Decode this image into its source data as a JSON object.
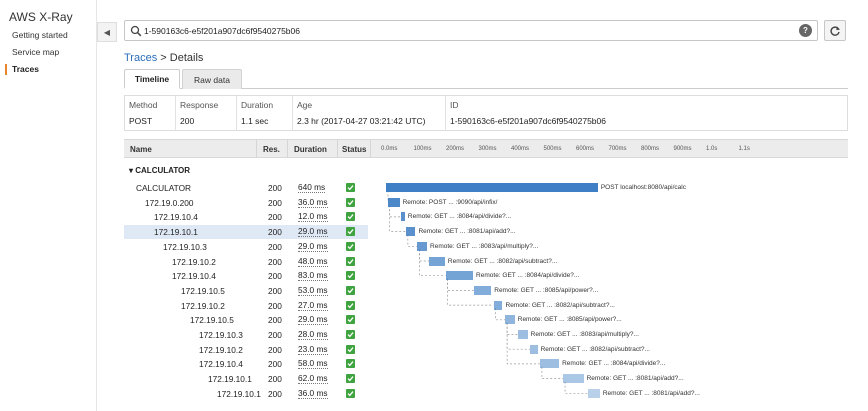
{
  "sidebar": {
    "title": "AWS X-Ray",
    "items": [
      {
        "label": "Getting started",
        "active": false
      },
      {
        "label": "Service map",
        "active": false
      },
      {
        "label": "Traces",
        "active": true
      }
    ],
    "accent": "#e7872b"
  },
  "search": {
    "value": "1-590163c6-e5f201a907dc6f9540275b06",
    "help": "?"
  },
  "breadcrumb": {
    "parent": "Traces",
    "separator": ">",
    "current": "Details"
  },
  "tabs": [
    {
      "label": "Timeline",
      "active": true
    },
    {
      "label": "Raw data",
      "active": false
    }
  ],
  "summary": {
    "method": {
      "header": "Method",
      "value": "POST"
    },
    "response": {
      "header": "Response",
      "value": "200"
    },
    "duration": {
      "header": "Duration",
      "value": "1.1 sec"
    },
    "age": {
      "header": "Age",
      "value": "2.3 hr (2017-04-27 03:21:42 UTC)"
    },
    "id": {
      "header": "ID",
      "value": "1-590163c6-e5f201a907dc6f9540275b06"
    }
  },
  "table": {
    "headers": {
      "name": "Name",
      "res": "Res.",
      "duration": "Duration",
      "status": "Status"
    },
    "ticks": [
      "0.0ms",
      "100ms",
      "200ms",
      "300ms",
      "400ms",
      "500ms",
      "600ms",
      "700ms",
      "800ms",
      "900ms",
      "1.0s",
      "1.1s"
    ],
    "group": "CALCULATOR",
    "bar_color": "#3f7fc5",
    "status_color": "#3fa33f",
    "rows": [
      {
        "name": "CALCULATOR",
        "res": "200",
        "duration": "640 ms",
        "bar_label": "POST localhost:8080/api/calc",
        "start_ms": 0,
        "dur_ms": 640,
        "depth": 0
      },
      {
        "name": "172.19.0.200",
        "res": "200",
        "duration": "36.0 ms",
        "bar_label": "Remote: POST ... :9090/api/infix/",
        "start_ms": 5,
        "dur_ms": 36,
        "depth": 1
      },
      {
        "name": "172.19.10.4",
        "res": "200",
        "duration": "12.0 ms",
        "bar_label": "Remote: GET ... :8084/api/divide?...",
        "start_ms": 45,
        "dur_ms": 12,
        "depth": 2
      },
      {
        "name": "172.19.10.1",
        "res": "200",
        "duration": "29.0 ms",
        "bar_label": "Remote: GET ... :8081/api/add?...",
        "start_ms": 60,
        "dur_ms": 29,
        "depth": 2,
        "selected": true
      },
      {
        "name": "172.19.10.3",
        "res": "200",
        "duration": "29.0 ms",
        "bar_label": "Remote: GET ... :8083/api/multiply?...",
        "start_ms": 95,
        "dur_ms": 29,
        "depth": 3
      },
      {
        "name": "172.19.10.2",
        "res": "200",
        "duration": "48.0 ms",
        "bar_label": "Remote: GET ... :8082/api/subtract?...",
        "start_ms": 130,
        "dur_ms": 48,
        "depth": 4
      },
      {
        "name": "172.19.10.4",
        "res": "200",
        "duration": "83.0 ms",
        "bar_label": "Remote: GET ... :8084/api/divide?...",
        "start_ms": 180,
        "dur_ms": 83,
        "depth": 4
      },
      {
        "name": "172.19.10.5",
        "res": "200",
        "duration": "53.0 ms",
        "bar_label": "Remote: GET ... :8085/api/power?...",
        "start_ms": 265,
        "dur_ms": 53,
        "depth": 5
      },
      {
        "name": "172.19.10.2",
        "res": "200",
        "duration": "27.0 ms",
        "bar_label": "Remote: GET ... :8082/api/subtract?...",
        "start_ms": 325,
        "dur_ms": 27,
        "depth": 5
      },
      {
        "name": "172.19.10.5",
        "res": "200",
        "duration": "29.0 ms",
        "bar_label": "Remote: GET ... :8085/api/power?...",
        "start_ms": 360,
        "dur_ms": 29,
        "depth": 6
      },
      {
        "name": "172.19.10.3",
        "res": "200",
        "duration": "28.0 ms",
        "bar_label": "Remote: GET ... :8083/api/multiply?...",
        "start_ms": 400,
        "dur_ms": 28,
        "depth": 7
      },
      {
        "name": "172.19.10.2",
        "res": "200",
        "duration": "23.0 ms",
        "bar_label": "Remote: GET ... :8082/api/subtract?...",
        "start_ms": 435,
        "dur_ms": 23,
        "depth": 7
      },
      {
        "name": "172.19.10.4",
        "res": "200",
        "duration": "58.0 ms",
        "bar_label": "Remote: GET ... :8084/api/divide?...",
        "start_ms": 465,
        "dur_ms": 58,
        "depth": 7
      },
      {
        "name": "172.19.10.1",
        "res": "200",
        "duration": "62.0 ms",
        "bar_label": "Remote: GET ... :8081/api/add?...",
        "start_ms": 535,
        "dur_ms": 62,
        "depth": 8
      },
      {
        "name": "172.19.10.1",
        "res": "200",
        "duration": "36.0 ms",
        "bar_label": "Remote: GET ... :8081/api/add?...",
        "start_ms": 610,
        "dur_ms": 36,
        "depth": 9
      }
    ]
  }
}
